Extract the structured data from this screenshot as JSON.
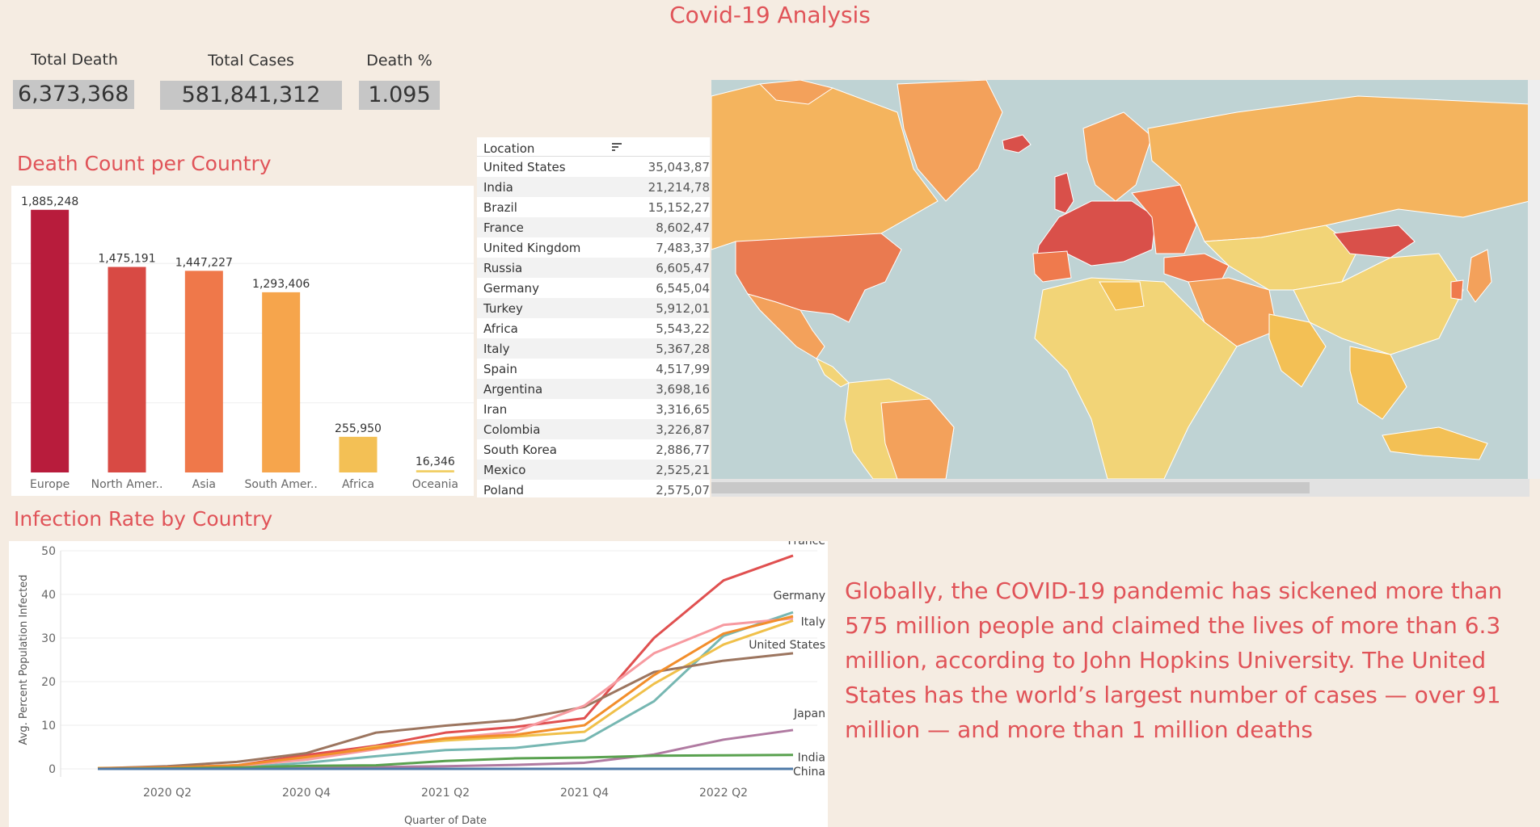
{
  "title": "Covid-19 Analysis",
  "kpis": {
    "total_death": {
      "label": "Total Death",
      "value": "6,373,368"
    },
    "total_cases": {
      "label": "Total Cases",
      "value": "581,841,312"
    },
    "death_pct": {
      "label": "Death %",
      "value": "1.095"
    }
  },
  "sections": {
    "death_count": "Death Count per Country",
    "infection_rate": "Infection Rate by Country"
  },
  "table": {
    "header": "Location",
    "rows": [
      {
        "name": "United States",
        "value": "35,043,87"
      },
      {
        "name": "India",
        "value": "21,214,78"
      },
      {
        "name": "Brazil",
        "value": "15,152,27"
      },
      {
        "name": "France",
        "value": "8,602,47"
      },
      {
        "name": "United Kingdom",
        "value": "7,483,37"
      },
      {
        "name": "Russia",
        "value": "6,605,47"
      },
      {
        "name": "Germany",
        "value": "6,545,04"
      },
      {
        "name": "Turkey",
        "value": "5,912,01"
      },
      {
        "name": "Africa",
        "value": "5,543,22"
      },
      {
        "name": "Italy",
        "value": "5,367,28"
      },
      {
        "name": "Spain",
        "value": "4,517,99"
      },
      {
        "name": "Argentina",
        "value": "3,698,16"
      },
      {
        "name": "Iran",
        "value": "3,316,65"
      },
      {
        "name": "Colombia",
        "value": "3,226,87"
      },
      {
        "name": "South Korea",
        "value": "2,886,77"
      },
      {
        "name": "Mexico",
        "value": "2,525,21"
      },
      {
        "name": "Poland",
        "value": "2,575,07"
      }
    ]
  },
  "summary": "Globally, the COVID-19 pandemic has sickened more than 575 million people and claimed the lives of more than 6.3 million, according to John Hopkins University. The United States has the world’s largest number of cases — over 91 million — and more than 1 million deaths",
  "colors": {
    "title": "#e05358",
    "europe": "#b81c3c",
    "north_america": "#d84a44",
    "asia": "#ef784a",
    "south_america": "#f6a54c",
    "africa": "#f3c055",
    "oceania": "#f1cf67",
    "ocean": "#bfd3d4",
    "land_light": "#f2d477",
    "land_mid": "#f3a15b",
    "land_dark": "#d9504a"
  },
  "chart_data": [
    {
      "type": "bar",
      "categories": [
        "Europe",
        "North Amer..",
        "Asia",
        "South Amer..",
        "Africa",
        "Oceania"
      ],
      "values": [
        1885248,
        1475191,
        1447227,
        1293406,
        255950,
        16346
      ],
      "data_labels": [
        "1,885,248",
        "1,475,191",
        "1,447,227",
        "1,293,406",
        "255,950",
        "16,346"
      ],
      "ylim": [
        0,
        2000000
      ],
      "grid": true
    },
    {
      "type": "line",
      "x": [
        "2020 Q1",
        "2020 Q2",
        "2020 Q3",
        "2020 Q4",
        "2021 Q1",
        "2021 Q2",
        "2021 Q3",
        "2021 Q4",
        "2022 Q1",
        "2022 Q2",
        "2022 Q3"
      ],
      "x_ticks": [
        "2020 Q2",
        "2020 Q4",
        "2021 Q2",
        "2021 Q4",
        "2022 Q2"
      ],
      "xlabel": "Quarter of Date",
      "ylabel": "Avg. Percent Population Infected",
      "ylim": [
        0,
        50
      ],
      "y_ticks": [
        0,
        10,
        20,
        30,
        40,
        50
      ],
      "series": [
        {
          "name": "France",
          "color": "#e05050",
          "values": [
            0.1,
            0.3,
            0.8,
            3.2,
            5.3,
            8.3,
            9.6,
            11.6,
            30,
            43.2,
            48.9
          ]
        },
        {
          "name": "Germany",
          "color": "#76b7b2",
          "values": [
            0.1,
            0.2,
            0.3,
            1.4,
            2.9,
            4.3,
            4.8,
            6.5,
            15.5,
            30.5,
            35.9
          ]
        },
        {
          "name": "Italy",
          "color": "#f0c04a",
          "values": [
            0.2,
            0.4,
            0.5,
            2.4,
            5.1,
            6.5,
            7.4,
            8.5,
            19.5,
            28.5,
            34
          ]
        },
        {
          "name": "United States",
          "color": "#9c755f",
          "values": [
            0.1,
            0.6,
            1.6,
            3.6,
            8.3,
            9.9,
            11.2,
            14.2,
            22.2,
            24.8,
            26.5
          ]
        },
        {
          "name": "",
          "color": "#f79aa0",
          "values": [
            0.1,
            0.3,
            0.7,
            2.1,
            4.5,
            7.0,
            8.5,
            14.5,
            26.5,
            33,
            34.5
          ]
        },
        {
          "name": "",
          "color": "#f28e2b",
          "values": [
            0.1,
            0.3,
            0.8,
            2.7,
            4.8,
            7.0,
            7.8,
            10,
            21.5,
            31,
            35
          ]
        },
        {
          "name": "Japan",
          "color": "#b07aa1",
          "values": [
            0,
            0,
            0.1,
            0.2,
            0.4,
            0.6,
            0.9,
            1.4,
            3.3,
            6.7,
            8.9
          ]
        },
        {
          "name": "India",
          "color": "#59a14f",
          "values": [
            0,
            0.1,
            0.3,
            0.7,
            0.8,
            1.8,
            2.4,
            2.6,
            3.0,
            3.1,
            3.2
          ]
        },
        {
          "name": "China",
          "color": "#4e79a7",
          "values": [
            0,
            0,
            0,
            0,
            0,
            0,
            0,
            0,
            0,
            0,
            0
          ]
        }
      ],
      "grid": true
    }
  ]
}
